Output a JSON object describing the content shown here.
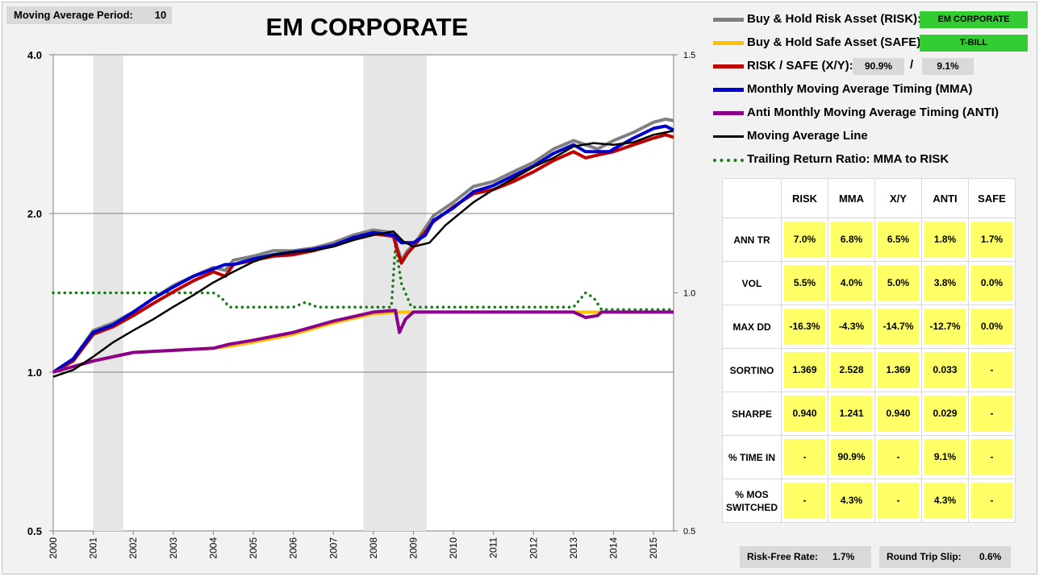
{
  "settings": {
    "ma_period_label": "Moving Average Period:",
    "ma_period_value": "10"
  },
  "legend": {
    "risk_label": "Buy & Hold Risk Asset (RISK):",
    "risk_asset": "EM CORPORATE",
    "safe_label": "Buy & Hold Safe Asset (SAFE):",
    "safe_asset": "T-BILL",
    "xy_label": "RISK / SAFE (X/Y):",
    "x_weight": "90.9%",
    "slash": "/",
    "y_weight": "9.1%",
    "mma_label": "Monthly Moving Average Timing (MMA)",
    "anti_label": "Anti Monthly Moving Average Timing (ANTI)",
    "ma_line_label": "Moving Average Line",
    "ratio_label": "Trailing Return Ratio: MMA to RISK"
  },
  "stats": {
    "columns": [
      "RISK",
      "MMA",
      "X/Y",
      "ANTI",
      "SAFE"
    ],
    "rows": [
      {
        "label": "ANN TR",
        "values": [
          "7.0%",
          "6.8%",
          "6.5%",
          "1.8%",
          "1.7%"
        ]
      },
      {
        "label": "VOL",
        "values": [
          "5.5%",
          "4.0%",
          "5.0%",
          "3.8%",
          "0.0%"
        ]
      },
      {
        "label": "MAX DD",
        "values": [
          "-16.3%",
          "-4.3%",
          "-14.7%",
          "-12.7%",
          "0.0%"
        ]
      },
      {
        "label": "SORTINO",
        "values": [
          "1.369",
          "2.528",
          "1.369",
          "0.033",
          "-"
        ]
      },
      {
        "label": "SHARPE",
        "values": [
          "0.940",
          "1.241",
          "0.940",
          "0.029",
          "-"
        ]
      },
      {
        "label": "% TIME IN",
        "values": [
          "-",
          "90.9%",
          "-",
          "9.1%",
          "-"
        ]
      },
      {
        "label": "% MOS SWITCHED",
        "values": [
          "-",
          "4.3%",
          "-",
          "4.3%",
          "-"
        ]
      }
    ]
  },
  "footer": {
    "rf_label": "Risk-Free Rate:",
    "rf_value": "1.7%",
    "slip_label": "Round Trip Slip:",
    "slip_value": "0.6%"
  },
  "colors": {
    "risk": "#808080",
    "safe": "#ffc000",
    "xy": "#c00000",
    "mma": "#0000cc",
    "anti": "#8b008b",
    "ma": "#000000",
    "ratio": "#1a7a1a",
    "recession": "#e6e6e6"
  },
  "chart_data": {
    "type": "line",
    "title": "EM CORPORATE",
    "y_scale": "log",
    "ylim": [
      0.5,
      4.0
    ],
    "yticks": [
      "0.5",
      "1.0",
      "2.0",
      "4.0"
    ],
    "y2lim": [
      0.5,
      1.5
    ],
    "y2ticks": [
      "0.5",
      "1.0",
      "1.5"
    ],
    "xlim": [
      2000,
      2015.5
    ],
    "xticks": [
      "2000",
      "2001",
      "2002",
      "2003",
      "2004",
      "2005",
      "2006",
      "2007",
      "2008",
      "2009",
      "2010",
      "2011",
      "2012",
      "2013",
      "2014",
      "2015"
    ],
    "shaded_periods": [
      [
        2001.0,
        2001.75
      ],
      [
        2007.75,
        2009.33
      ]
    ],
    "series": [
      {
        "key": "risk",
        "width": 4,
        "points": [
          [
            2000.0,
            1.0
          ],
          [
            2000.5,
            1.06
          ],
          [
            2001.0,
            1.2
          ],
          [
            2001.5,
            1.24
          ],
          [
            2002.0,
            1.3
          ],
          [
            2002.5,
            1.38
          ],
          [
            2003.0,
            1.46
          ],
          [
            2003.5,
            1.52
          ],
          [
            2004.0,
            1.58
          ],
          [
            2004.3,
            1.56
          ],
          [
            2004.5,
            1.63
          ],
          [
            2005.0,
            1.66
          ],
          [
            2005.5,
            1.7
          ],
          [
            2006.0,
            1.7
          ],
          [
            2006.5,
            1.72
          ],
          [
            2007.0,
            1.76
          ],
          [
            2007.5,
            1.82
          ],
          [
            2008.0,
            1.86
          ],
          [
            2008.5,
            1.84
          ],
          [
            2008.6,
            1.72
          ],
          [
            2008.7,
            1.63
          ],
          [
            2008.85,
            1.7
          ],
          [
            2009.0,
            1.74
          ],
          [
            2009.5,
            1.98
          ],
          [
            2010.0,
            2.1
          ],
          [
            2010.5,
            2.25
          ],
          [
            2011.0,
            2.3
          ],
          [
            2011.5,
            2.4
          ],
          [
            2012.0,
            2.5
          ],
          [
            2012.5,
            2.65
          ],
          [
            2013.0,
            2.75
          ],
          [
            2013.3,
            2.7
          ],
          [
            2013.6,
            2.65
          ],
          [
            2014.0,
            2.75
          ],
          [
            2014.5,
            2.85
          ],
          [
            2015.0,
            2.98
          ],
          [
            2015.3,
            3.02
          ],
          [
            2015.5,
            3.0
          ]
        ]
      },
      {
        "key": "xy",
        "width": 4,
        "points": [
          [
            2000.0,
            1.0
          ],
          [
            2000.5,
            1.05
          ],
          [
            2001.0,
            1.18
          ],
          [
            2001.5,
            1.22
          ],
          [
            2002.0,
            1.28
          ],
          [
            2002.5,
            1.35
          ],
          [
            2003.0,
            1.42
          ],
          [
            2003.5,
            1.49
          ],
          [
            2004.0,
            1.55
          ],
          [
            2004.3,
            1.52
          ],
          [
            2004.5,
            1.6
          ],
          [
            2005.0,
            1.63
          ],
          [
            2005.5,
            1.66
          ],
          [
            2006.0,
            1.67
          ],
          [
            2006.5,
            1.7
          ],
          [
            2007.0,
            1.74
          ],
          [
            2007.5,
            1.8
          ],
          [
            2008.0,
            1.83
          ],
          [
            2008.5,
            1.81
          ],
          [
            2008.6,
            1.7
          ],
          [
            2008.7,
            1.61
          ],
          [
            2008.85,
            1.68
          ],
          [
            2009.0,
            1.73
          ],
          [
            2009.5,
            1.93
          ],
          [
            2010.0,
            2.06
          ],
          [
            2010.5,
            2.18
          ],
          [
            2011.0,
            2.22
          ],
          [
            2011.5,
            2.3
          ],
          [
            2012.0,
            2.4
          ],
          [
            2012.5,
            2.52
          ],
          [
            2013.0,
            2.62
          ],
          [
            2013.3,
            2.55
          ],
          [
            2013.6,
            2.58
          ],
          [
            2014.0,
            2.62
          ],
          [
            2014.5,
            2.7
          ],
          [
            2015.0,
            2.78
          ],
          [
            2015.3,
            2.82
          ],
          [
            2015.5,
            2.79
          ]
        ]
      },
      {
        "key": "mma",
        "width": 4,
        "points": [
          [
            2000.0,
            1.0
          ],
          [
            2000.5,
            1.06
          ],
          [
            2001.0,
            1.19
          ],
          [
            2001.5,
            1.23
          ],
          [
            2002.0,
            1.3
          ],
          [
            2002.5,
            1.38
          ],
          [
            2003.0,
            1.45
          ],
          [
            2003.5,
            1.52
          ],
          [
            2004.0,
            1.57
          ],
          [
            2004.3,
            1.6
          ],
          [
            2004.5,
            1.6
          ],
          [
            2005.0,
            1.64
          ],
          [
            2005.5,
            1.67
          ],
          [
            2006.0,
            1.69
          ],
          [
            2006.5,
            1.71
          ],
          [
            2007.0,
            1.74
          ],
          [
            2007.5,
            1.8
          ],
          [
            2008.0,
            1.84
          ],
          [
            2008.5,
            1.82
          ],
          [
            2008.7,
            1.76
          ],
          [
            2009.0,
            1.76
          ],
          [
            2009.3,
            1.82
          ],
          [
            2009.5,
            1.94
          ],
          [
            2010.0,
            2.05
          ],
          [
            2010.5,
            2.2
          ],
          [
            2011.0,
            2.26
          ],
          [
            2011.5,
            2.36
          ],
          [
            2012.0,
            2.46
          ],
          [
            2012.5,
            2.6
          ],
          [
            2013.0,
            2.7
          ],
          [
            2013.3,
            2.62
          ],
          [
            2013.9,
            2.62
          ],
          [
            2014.0,
            2.65
          ],
          [
            2014.5,
            2.78
          ],
          [
            2015.0,
            2.9
          ],
          [
            2015.3,
            2.93
          ],
          [
            2015.5,
            2.88
          ]
        ]
      },
      {
        "key": "safe",
        "width": 4,
        "points": [
          [
            2000.0,
            1.0
          ],
          [
            2001.0,
            1.05
          ],
          [
            2002.0,
            1.09
          ],
          [
            2003.0,
            1.1
          ],
          [
            2004.0,
            1.11
          ],
          [
            2004.4,
            1.12
          ],
          [
            2005.0,
            1.14
          ],
          [
            2006.0,
            1.18
          ],
          [
            2007.0,
            1.24
          ],
          [
            2008.0,
            1.29
          ],
          [
            2008.6,
            1.3
          ],
          [
            2009.0,
            1.3
          ],
          [
            2010.0,
            1.3
          ],
          [
            2011.0,
            1.3
          ],
          [
            2012.0,
            1.3
          ],
          [
            2013.0,
            1.3
          ],
          [
            2014.0,
            1.3
          ],
          [
            2015.5,
            1.3
          ]
        ]
      },
      {
        "key": "anti",
        "width": 4,
        "points": [
          [
            2000.0,
            1.0
          ],
          [
            2001.0,
            1.05
          ],
          [
            2002.0,
            1.09
          ],
          [
            2003.0,
            1.1
          ],
          [
            2004.0,
            1.11
          ],
          [
            2004.4,
            1.13
          ],
          [
            2005.0,
            1.15
          ],
          [
            2006.0,
            1.19
          ],
          [
            2007.0,
            1.25
          ],
          [
            2008.0,
            1.3
          ],
          [
            2008.55,
            1.31
          ],
          [
            2008.65,
            1.19
          ],
          [
            2008.8,
            1.26
          ],
          [
            2009.0,
            1.3
          ],
          [
            2010.0,
            1.3
          ],
          [
            2011.0,
            1.3
          ],
          [
            2012.0,
            1.3
          ],
          [
            2013.0,
            1.3
          ],
          [
            2013.3,
            1.27
          ],
          [
            2013.6,
            1.28
          ],
          [
            2013.7,
            1.3
          ],
          [
            2014.0,
            1.3
          ],
          [
            2015.5,
            1.3
          ]
        ]
      },
      {
        "key": "ma",
        "width": 2.5,
        "points": [
          [
            2000.0,
            0.98
          ],
          [
            2000.5,
            1.01
          ],
          [
            2001.0,
            1.07
          ],
          [
            2001.5,
            1.14
          ],
          [
            2002.0,
            1.2
          ],
          [
            2002.5,
            1.26
          ],
          [
            2003.0,
            1.33
          ],
          [
            2003.5,
            1.4
          ],
          [
            2004.0,
            1.48
          ],
          [
            2004.5,
            1.55
          ],
          [
            2005.0,
            1.62
          ],
          [
            2005.5,
            1.67
          ],
          [
            2006.0,
            1.69
          ],
          [
            2006.5,
            1.7
          ],
          [
            2007.0,
            1.73
          ],
          [
            2007.5,
            1.78
          ],
          [
            2008.0,
            1.82
          ],
          [
            2008.5,
            1.85
          ],
          [
            2008.75,
            1.77
          ],
          [
            2009.0,
            1.73
          ],
          [
            2009.4,
            1.76
          ],
          [
            2009.8,
            1.9
          ],
          [
            2010.5,
            2.1
          ],
          [
            2011.0,
            2.22
          ],
          [
            2011.5,
            2.33
          ],
          [
            2012.0,
            2.45
          ],
          [
            2012.5,
            2.55
          ],
          [
            2013.0,
            2.68
          ],
          [
            2013.5,
            2.72
          ],
          [
            2014.0,
            2.7
          ],
          [
            2014.5,
            2.73
          ],
          [
            2015.0,
            2.82
          ],
          [
            2015.5,
            2.87
          ]
        ]
      }
    ],
    "secondary_series": {
      "key": "ratio",
      "name": "Trailing Return Ratio: MMA to RISK",
      "points": [
        [
          2000.0,
          1.0
        ],
        [
          2001.0,
          1.0
        ],
        [
          2002.0,
          1.0
        ],
        [
          2003.0,
          1.0
        ],
        [
          2004.0,
          1.0
        ],
        [
          2004.2,
          0.99
        ],
        [
          2004.4,
          0.97
        ],
        [
          2005.0,
          0.97
        ],
        [
          2006.0,
          0.97
        ],
        [
          2006.3,
          0.98
        ],
        [
          2006.6,
          0.97
        ],
        [
          2008.0,
          0.97
        ],
        [
          2008.45,
          0.97
        ],
        [
          2008.55,
          1.1
        ],
        [
          2008.7,
          1.02
        ],
        [
          2008.95,
          0.97
        ],
        [
          2010.0,
          0.97
        ],
        [
          2012.0,
          0.97
        ],
        [
          2013.0,
          0.97
        ],
        [
          2013.3,
          1.0
        ],
        [
          2013.5,
          0.99
        ],
        [
          2013.7,
          0.965
        ],
        [
          2014.0,
          0.965
        ],
        [
          2015.0,
          0.965
        ],
        [
          2015.5,
          0.965
        ]
      ]
    }
  }
}
